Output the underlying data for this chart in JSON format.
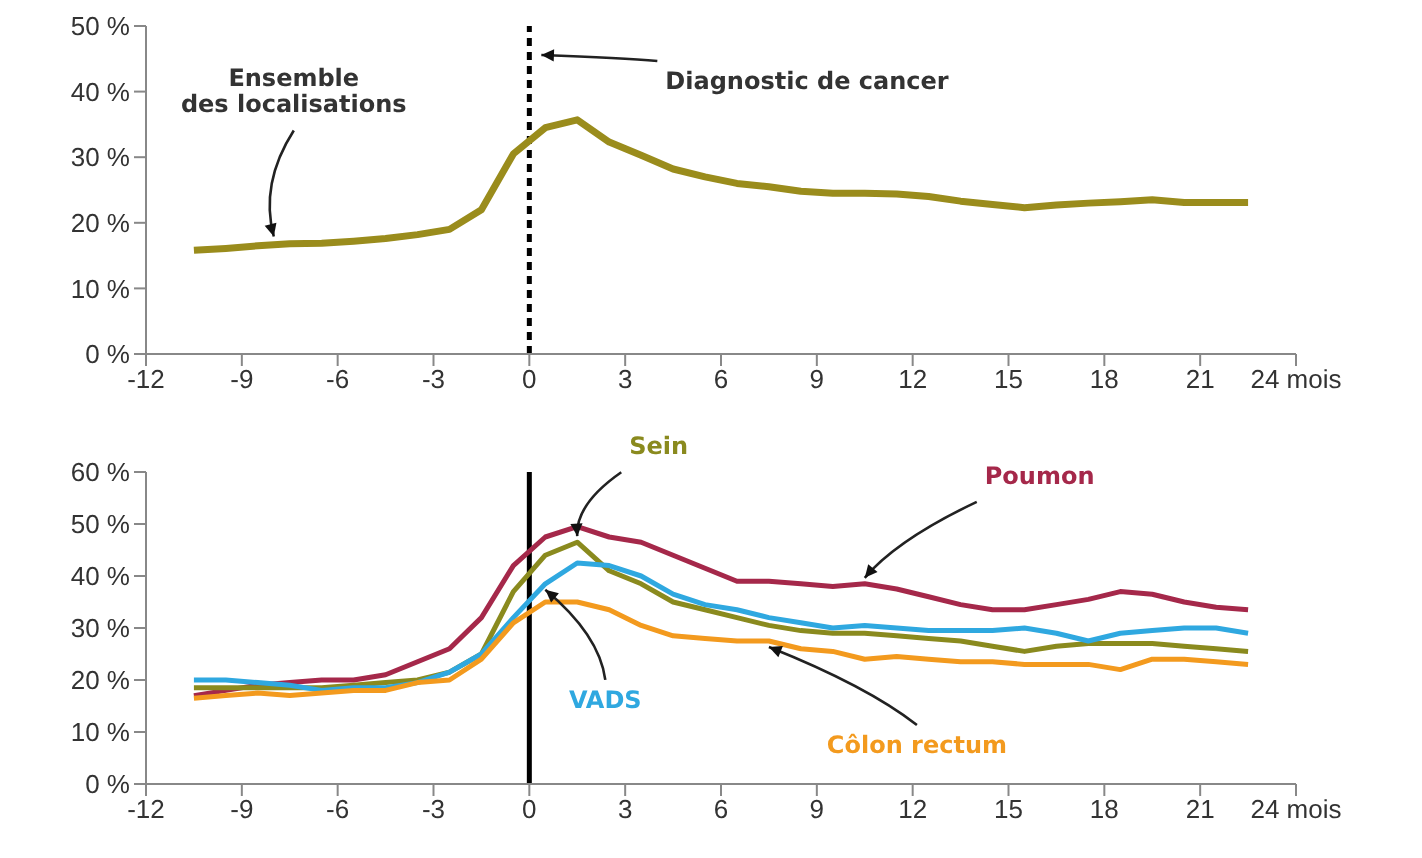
{
  "chart_data": [
    {
      "type": "line",
      "x": [
        -10.5,
        -9.5,
        -8.5,
        -7.5,
        -6.5,
        -5.5,
        -4.5,
        -3.5,
        -2.5,
        -1.5,
        -0.5,
        0.5,
        1.5,
        2.5,
        3.5,
        4.5,
        5.5,
        6.5,
        7.5,
        8.5,
        9.5,
        10.5,
        11.5,
        12.5,
        13.5,
        14.5,
        15.5,
        16.5,
        17.5,
        18.5,
        19.5,
        20.5,
        21.5,
        22.5
      ],
      "series": [
        {
          "color": "#9a8c1c",
          "values": [
            15.8,
            16.1,
            16.5,
            16.8,
            16.9,
            17.2,
            17.6,
            18.2,
            19,
            22,
            30.5,
            34.5,
            35.7,
            32.3,
            30.3,
            28.2,
            27,
            26,
            25.5,
            24.8,
            24.5,
            24.5,
            24.4,
            24,
            23.3,
            22.8,
            22.3,
            22.7,
            23,
            23.2,
            23.5,
            23.1,
            23.1,
            23.1
          ]
        }
      ],
      "xlim": [
        -12,
        24
      ],
      "xticks": [
        -12,
        -9,
        -6,
        -3,
        0,
        3,
        6,
        9,
        12,
        15,
        18,
        21,
        {
          "value": 24,
          "label": "24 mois"
        }
      ],
      "ylim": [
        0,
        50
      ],
      "yticks": [
        {
          "value": 0,
          "label": "0 %"
        },
        {
          "value": 10,
          "label": "10 %"
        },
        {
          "value": 20,
          "label": "20 %"
        },
        {
          "value": 30,
          "label": "30 %"
        },
        {
          "value": 40,
          "label": "40 %"
        },
        {
          "value": 50,
          "label": "50 %"
        }
      ],
      "ref_lines": [
        {
          "axis": "x",
          "value": 0,
          "color": "#000000",
          "line_style": "dashed"
        }
      ],
      "annotations": [
        {
          "text": "Ensemble\ndes localisations",
          "x": -8,
          "y": 17
        },
        "Diagnostic de cancer"
      ],
      "grid": false,
      "legend": false,
      "marker": "none",
      "line_style": "solid"
    },
    {
      "type": "line",
      "x": [
        -10.5,
        -9.5,
        -8.5,
        -7.5,
        -6.5,
        -5.5,
        -4.5,
        -3.5,
        -2.5,
        -1.5,
        -0.5,
        0.5,
        1.5,
        2.5,
        3.5,
        4.5,
        5.5,
        6.5,
        7.5,
        8.5,
        9.5,
        10.5,
        11.5,
        12.5,
        13.5,
        14.5,
        15.5,
        16.5,
        17.5,
        18.5,
        19.5,
        20.5,
        21.5,
        22.5
      ],
      "series": [
        {
          "name": "Poumon",
          "color": "#a5284a",
          "values": [
            17,
            18,
            19,
            19.5,
            20,
            20,
            21,
            23.5,
            26,
            32,
            42,
            47.5,
            49.5,
            47.5,
            46.5,
            44,
            41.5,
            39,
            39,
            38.5,
            38,
            38.5,
            37.5,
            36,
            34.5,
            33.5,
            33.5,
            34.5,
            35.5,
            37,
            36.5,
            35,
            34,
            33.5
          ]
        },
        {
          "name": "Sein",
          "color": "#8a8a1e",
          "values": [
            18.5,
            18.5,
            18.5,
            18.5,
            18.5,
            19,
            19.5,
            20,
            21.5,
            25,
            37,
            44,
            46.5,
            41,
            38.5,
            35,
            33.5,
            32,
            30.5,
            29.5,
            29,
            29,
            28.5,
            28,
            27.5,
            26.5,
            25.5,
            26.5,
            27,
            27,
            27,
            26.5,
            26,
            25.5
          ]
        },
        {
          "name": "VADS",
          "color": "#2fa8e0",
          "values": [
            20,
            20,
            19.5,
            19,
            18,
            18.5,
            18.5,
            19.5,
            21.5,
            25,
            32,
            38.5,
            42.5,
            42,
            40,
            36.5,
            34.5,
            33.5,
            32,
            31,
            30,
            30.5,
            30,
            29.5,
            29.5,
            29.5,
            30,
            29,
            27.5,
            29,
            29.5,
            30,
            30,
            29
          ]
        },
        {
          "name": "Côlon rectum",
          "color": "#f39a1e",
          "values": [
            16.5,
            17,
            17.5,
            17,
            17.5,
            18,
            18,
            19.5,
            20,
            24,
            31,
            35,
            35,
            33.5,
            30.5,
            28.5,
            28,
            27.5,
            27.5,
            26,
            25.5,
            24,
            24.5,
            24,
            23.5,
            23.5,
            23,
            23,
            23,
            22,
            24,
            24,
            23.5,
            23
          ]
        }
      ],
      "xlim": [
        -12,
        24
      ],
      "xticks": [
        -12,
        -9,
        -6,
        -3,
        0,
        3,
        6,
        9,
        12,
        15,
        18,
        21,
        {
          "value": 24,
          "label": "24 mois"
        }
      ],
      "ylim": [
        0,
        60
      ],
      "yticks": [
        {
          "value": 0,
          "label": "0 %"
        },
        {
          "value": 10,
          "label": "10 %"
        },
        {
          "value": 20,
          "label": "20 %"
        },
        {
          "value": 30,
          "label": "30 %"
        },
        {
          "value": 40,
          "label": "40 %"
        },
        {
          "value": 50,
          "label": "50 %"
        },
        {
          "value": 60,
          "label": "60 %"
        }
      ],
      "ref_lines": [
        {
          "axis": "x",
          "value": 0,
          "color": "#000000",
          "line_style": "solid"
        }
      ],
      "grid": false,
      "legend": false,
      "marker": "none",
      "line_style": "solid"
    }
  ]
}
